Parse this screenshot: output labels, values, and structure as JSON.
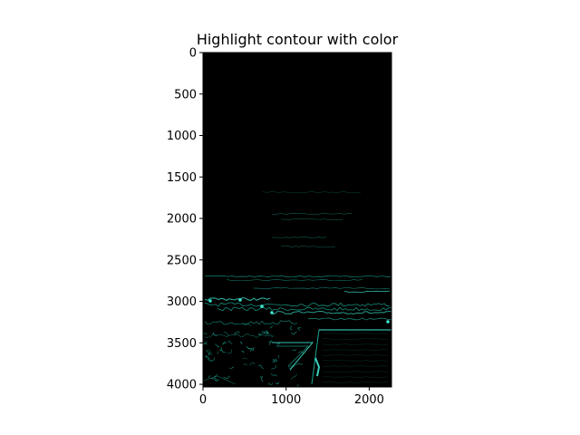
{
  "chart_data": {
    "type": "image",
    "title": "Highlight contour with color",
    "xlabel": "",
    "ylabel": "",
    "xlim": [
      0,
      2268
    ],
    "ylim": [
      4032,
      0
    ],
    "x_ticks": [
      0,
      1000,
      2000
    ],
    "y_ticks": [
      0,
      500,
      1000,
      1500,
      2000,
      2500,
      3000,
      3500,
      4000
    ],
    "grid": false,
    "colors": {
      "background": "#000000",
      "contour": "#20c8b0",
      "contour_bright": "#3fe6cf"
    }
  }
}
